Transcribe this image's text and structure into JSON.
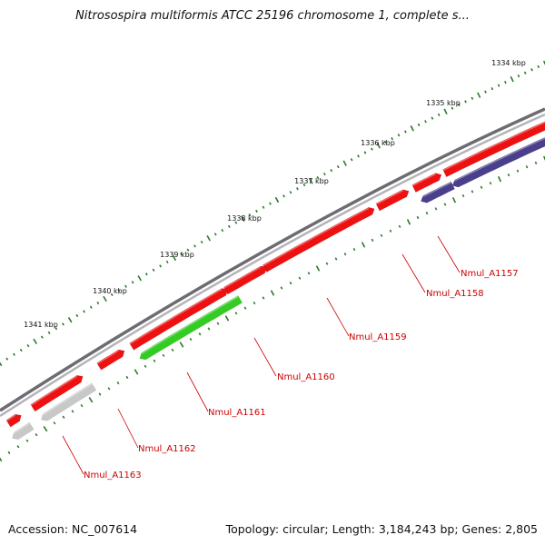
{
  "title": "Nitrosospira multiformis ATCC 25196 chromosome 1, complete s...",
  "footer": {
    "accession": "Accession: NC_007614",
    "summary": "Topology: circular; Length: 3,184,243 bp; Genes: 2,805"
  },
  "colors": {
    "backbone": "#8c8a90",
    "forward_gene": "#ee1111",
    "reverse_gene_blue": "#4a3f8c",
    "reverse_gene_green": "#33cc22",
    "reverse_gene_grey": "#c8c8c8",
    "label_text": "#cc0000",
    "tick": "#2a7a2a"
  },
  "ticks": [
    {
      "label": "1334 kbp"
    },
    {
      "label": "1335 kbp"
    },
    {
      "label": "1336 kbp"
    },
    {
      "label": "1337 kbp"
    },
    {
      "label": "1338 kbp"
    },
    {
      "label": "1339 kbp"
    },
    {
      "label": "1340 kbp"
    },
    {
      "label": "1341 kbp"
    }
  ],
  "genes": [
    {
      "label": "Nmul_A1157"
    },
    {
      "label": "Nmul_A1158"
    },
    {
      "label": "Nmul_A1159"
    },
    {
      "label": "Nmul_A1160"
    },
    {
      "label": "Nmul_A1161"
    },
    {
      "label": "Nmul_A1162"
    },
    {
      "label": "Nmul_A1163"
    }
  ]
}
